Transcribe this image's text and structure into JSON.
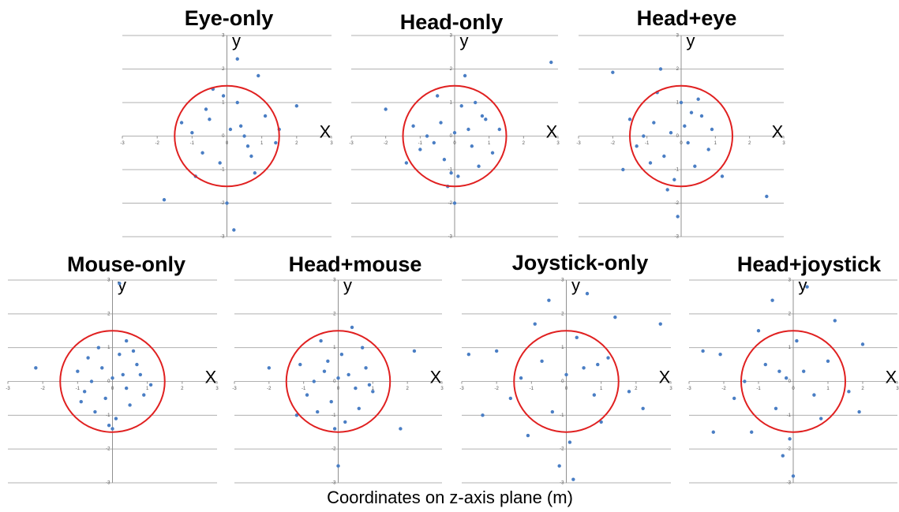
{
  "caption": "Coordinates on z-axis plane (m)",
  "chart_data": [
    {
      "type": "scatter",
      "title": "Eye-only",
      "xlabel": "X",
      "ylabel": "y",
      "xlim": [
        -3,
        3
      ],
      "ylim": [
        -3,
        3
      ],
      "xticks": [
        -3,
        -2,
        -1,
        0,
        1,
        2,
        3
      ],
      "yticks": [
        -3,
        -2,
        -1,
        0,
        1,
        2,
        3
      ],
      "grid": true,
      "color": "#4a7ec4",
      "circle": {
        "radius": 1.5,
        "color": "#e02020"
      },
      "x": [
        0.1,
        -0.5,
        0.6,
        -1.0,
        1.1,
        0.3,
        -0.2,
        0.8,
        -0.7,
        0.4,
        -1.3,
        1.4,
        0.0,
        -0.4,
        0.9,
        -0.9,
        0.2,
        0.5,
        -1.8,
        2.0,
        0.3,
        -0.1,
        1.5,
        0.7,
        -0.6
      ],
      "values": [
        0.2,
        0.5,
        -0.3,
        0.1,
        0.6,
        1.0,
        -0.8,
        -1.1,
        -0.5,
        0.3,
        0.4,
        -0.2,
        -2.0,
        1.4,
        1.8,
        -1.2,
        -2.8,
        0.0,
        -1.9,
        0.9,
        2.3,
        1.2,
        0.2,
        -0.6,
        0.8
      ]
    },
    {
      "type": "scatter",
      "title": "Head-only",
      "xlabel": "X",
      "ylabel": "y",
      "xlim": [
        -3,
        3
      ],
      "ylim": [
        -3,
        3
      ],
      "xticks": [
        -3,
        -2,
        -1,
        0,
        1,
        2,
        3
      ],
      "yticks": [
        -3,
        -2,
        -1,
        0,
        1,
        2,
        3
      ],
      "grid": true,
      "color": "#4a7ec4",
      "circle": {
        "radius": 1.5,
        "color": "#e02020"
      },
      "x": [
        0.0,
        -0.4,
        0.5,
        -0.8,
        0.9,
        0.2,
        -0.3,
        0.7,
        -1.0,
        0.4,
        -1.2,
        1.1,
        0.1,
        -0.5,
        0.6,
        -0.2,
        0.3,
        -2.0,
        2.8,
        -0.6,
        0.8,
        -1.4,
        0.0,
        1.3,
        -0.1
      ],
      "values": [
        0.1,
        0.4,
        -0.3,
        0.0,
        0.5,
        0.9,
        -0.7,
        -0.9,
        -0.4,
        0.2,
        0.3,
        -0.5,
        -1.2,
        1.2,
        1.0,
        -1.5,
        1.8,
        0.8,
        2.2,
        -0.2,
        0.6,
        -0.8,
        -2.0,
        0.2,
        -1.1
      ]
    },
    {
      "type": "scatter",
      "title": "Head+eye",
      "xlabel": "X",
      "ylabel": "y",
      "xlim": [
        -3,
        3
      ],
      "ylim": [
        -3,
        3
      ],
      "xticks": [
        -3,
        -2,
        -1,
        0,
        1,
        2,
        3
      ],
      "yticks": [
        -3,
        -2,
        -1,
        0,
        1,
        2,
        3
      ],
      "grid": true,
      "color": "#4a7ec4",
      "circle": {
        "radius": 1.5,
        "color": "#e02020"
      },
      "x": [
        -0.3,
        -0.8,
        0.2,
        -1.1,
        0.6,
        0.0,
        -0.5,
        0.4,
        -1.3,
        0.1,
        -1.5,
        0.8,
        -0.2,
        -0.7,
        0.5,
        -0.4,
        0.9,
        -2.0,
        2.5,
        -0.9,
        -0.1,
        -1.7,
        0.3,
        1.2,
        -0.6
      ],
      "values": [
        0.1,
        0.4,
        -0.2,
        0.0,
        0.6,
        1.0,
        -0.6,
        -0.9,
        -0.3,
        0.3,
        0.5,
        -0.4,
        -1.3,
        1.3,
        1.1,
        -1.6,
        0.2,
        1.9,
        -1.8,
        -0.8,
        -2.4,
        -1.0,
        0.7,
        -1.2,
        2.0
      ]
    },
    {
      "type": "scatter",
      "title": "Mouse-only",
      "xlabel": "X",
      "ylabel": "y",
      "xlim": [
        -3,
        3
      ],
      "ylim": [
        -3,
        3
      ],
      "xticks": [
        -3,
        -2,
        -1,
        0,
        1,
        2,
        3
      ],
      "yticks": [
        -3,
        -2,
        -1,
        0,
        1,
        2,
        3
      ],
      "grid": true,
      "color": "#4a7ec4",
      "circle": {
        "radius": 1.5,
        "color": "#e02020"
      },
      "x": [
        0.0,
        -0.3,
        0.4,
        -0.6,
        0.7,
        0.2,
        -0.2,
        0.5,
        -0.8,
        0.3,
        -1.0,
        0.9,
        0.1,
        -0.4,
        0.6,
        -0.1,
        0.2,
        -2.2,
        0.8,
        -0.5,
        1.1,
        -0.7,
        0.0,
        -0.9,
        0.4
      ],
      "values": [
        0.1,
        0.4,
        -0.2,
        0.0,
        0.5,
        0.8,
        -0.5,
        -0.7,
        -0.3,
        0.2,
        0.3,
        -0.4,
        -1.1,
        1.0,
        0.9,
        -1.3,
        2.9,
        0.4,
        0.2,
        -0.9,
        -0.1,
        0.7,
        -1.4,
        -0.6,
        1.2
      ]
    },
    {
      "type": "scatter",
      "title": "Head+mouse",
      "xlabel": "X",
      "ylabel": "y",
      "xlim": [
        -3,
        3
      ],
      "ylim": [
        -3,
        3
      ],
      "xticks": [
        -3,
        -2,
        -1,
        0,
        1,
        2,
        3
      ],
      "yticks": [
        -3,
        -2,
        -1,
        0,
        1,
        2,
        3
      ],
      "grid": true,
      "color": "#4a7ec4",
      "circle": {
        "radius": 1.5,
        "color": "#e02020"
      },
      "x": [
        0.0,
        -0.4,
        0.5,
        -0.7,
        0.8,
        0.1,
        -0.2,
        0.6,
        -0.9,
        0.3,
        -1.1,
        1.0,
        0.2,
        -0.5,
        0.7,
        -0.1,
        0.4,
        -2.0,
        2.2,
        -0.6,
        0.9,
        -1.2,
        0.0,
        1.8,
        -0.3
      ],
      "values": [
        0.1,
        0.3,
        -0.2,
        0.0,
        0.4,
        0.8,
        -0.6,
        -0.8,
        -0.4,
        0.2,
        0.5,
        -0.3,
        -1.2,
        1.2,
        1.0,
        -1.4,
        1.6,
        0.4,
        0.9,
        -0.9,
        -0.1,
        -1.0,
        -2.5,
        -1.4,
        0.6
      ]
    },
    {
      "type": "scatter",
      "title": "Joystick-only",
      "xlabel": "X",
      "ylabel": "y",
      "xlim": [
        -3,
        3
      ],
      "ylim": [
        -3,
        3
      ],
      "xticks": [
        -3,
        -2,
        -1,
        0,
        1,
        2,
        3
      ],
      "yticks": [
        -3,
        -2,
        -1,
        0,
        1,
        2,
        3
      ],
      "grid": true,
      "color": "#4a7ec4",
      "circle": {
        "radius": 1.5,
        "color": "#e02020"
      },
      "x": [
        0.0,
        -0.7,
        0.8,
        -1.3,
        1.2,
        0.3,
        -0.4,
        1.0,
        -1.6,
        0.5,
        -2.0,
        1.8,
        0.1,
        -0.9,
        1.4,
        -0.2,
        0.6,
        -2.8,
        2.7,
        -1.1,
        0.2,
        -0.5,
        2.2,
        -2.4,
        0.9
      ],
      "values": [
        0.2,
        0.6,
        -0.4,
        0.1,
        0.7,
        1.3,
        -0.9,
        -1.2,
        -0.5,
        0.4,
        0.9,
        -0.3,
        -1.8,
        1.7,
        1.9,
        -2.5,
        2.6,
        0.8,
        1.7,
        -1.6,
        -2.9,
        2.4,
        -0.8,
        -1.0,
        0.5
      ]
    },
    {
      "type": "scatter",
      "title": "Head+joystick",
      "xlabel": "X",
      "ylabel": "y",
      "xlim": [
        -3,
        3
      ],
      "ylim": [
        -3,
        3
      ],
      "xticks": [
        -3,
        -2,
        -1,
        0,
        1,
        2,
        3
      ],
      "yticks": [
        -3,
        -2,
        -1,
        0,
        1,
        2,
        3
      ],
      "grid": true,
      "color": "#4a7ec4",
      "circle": {
        "radius": 1.5,
        "color": "#e02020"
      },
      "x": [
        -0.2,
        -0.8,
        0.6,
        -1.4,
        1.0,
        0.1,
        -0.5,
        0.8,
        -1.7,
        0.3,
        -2.1,
        1.6,
        -0.1,
        -1.0,
        1.2,
        -0.3,
        0.4,
        -2.6,
        2.0,
        -1.2,
        0.0,
        -0.6,
        1.9,
        -2.3,
        -0.4
      ],
      "values": [
        0.1,
        0.5,
        -0.4,
        0.0,
        0.6,
        1.2,
        -0.8,
        -1.1,
        -0.5,
        0.3,
        0.8,
        -0.3,
        -1.7,
        1.5,
        1.8,
        -2.2,
        2.8,
        0.9,
        1.1,
        -1.5,
        -2.8,
        2.4,
        -0.9,
        -1.5,
        0.3
      ]
    }
  ]
}
